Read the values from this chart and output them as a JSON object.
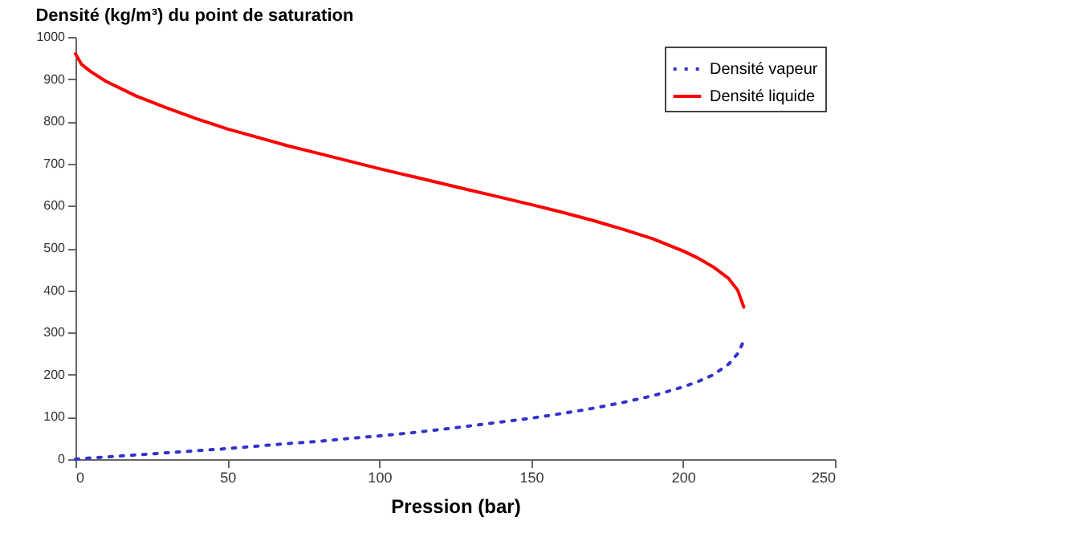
{
  "chart_data": {
    "type": "line",
    "title": "Densité (kg/m³) du point de saturation",
    "xlabel": "Pression   (bar)",
    "xlim": [
      0,
      250
    ],
    "xticks": [
      0,
      50,
      100,
      150,
      200,
      250
    ],
    "ylim": [
      0,
      1000
    ],
    "yticks": [
      0,
      100,
      200,
      300,
      400,
      500,
      600,
      700,
      800,
      900,
      1000
    ],
    "grid": false,
    "legend": "top right",
    "marker": "none",
    "x": [
      0,
      2,
      5,
      10,
      20,
      30,
      40,
      50,
      60,
      70,
      80,
      90,
      100,
      110,
      120,
      130,
      140,
      150,
      160,
      170,
      180,
      190,
      200,
      205,
      210,
      215,
      218,
      220
    ],
    "series": [
      {
        "name": "Densité vapeur",
        "color": "#3333cc",
        "line_style": "dotted",
        "values": [
          0,
          1,
          3,
          5,
          10,
          15,
          20,
          25,
          31,
          37,
          42,
          49,
          55,
          62,
          70,
          79,
          88,
          97,
          108,
          120,
          134,
          150,
          171,
          184,
          200,
          225,
          250,
          280
        ]
      },
      {
        "name": "Densité liquide",
        "color": "#ff0000",
        "line_style": "solid",
        "values": [
          960,
          935,
          918,
          895,
          860,
          832,
          806,
          782,
          762,
          742,
          724,
          706,
          688,
          671,
          654,
          637,
          620,
          603,
          585,
          566,
          545,
          522,
          493,
          476,
          455,
          428,
          400,
          360
        ]
      }
    ]
  }
}
